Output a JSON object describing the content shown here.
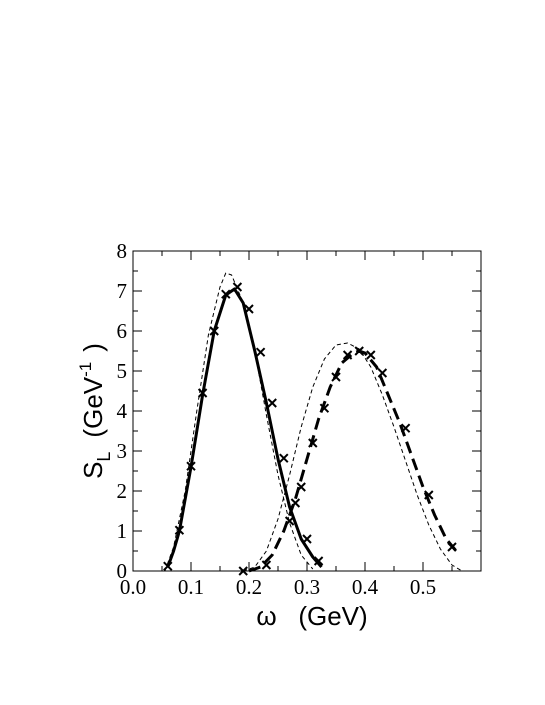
{
  "chart_data": {
    "type": "line",
    "xlabel": "ω   (GeV)",
    "ylabel": {
      "main": "S",
      "sub": "L",
      "unit": "(GeV",
      "sup": "-1",
      "close": ")"
    },
    "xlim": [
      0,
      0.6
    ],
    "ylim": [
      0,
      8
    ],
    "xticks": [
      {
        "value": 0,
        "label": "0.0"
      },
      0.1,
      0.2,
      0.3,
      0.4,
      0.5
    ],
    "yticks": [
      0,
      1,
      2,
      3,
      4,
      5,
      6,
      7,
      8
    ],
    "xminorticks": [
      0.05,
      0.15,
      0.25,
      0.35,
      0.45,
      0.55
    ],
    "yminorticks": [
      0.5,
      1.5,
      2.5,
      3.5,
      4.5,
      5.5,
      6.5,
      7.5
    ],
    "color": "#000000",
    "series": [
      {
        "style": "solid",
        "x": [
          0.06,
          0.07,
          0.08,
          0.1,
          0.12,
          0.14,
          0.16,
          0.175,
          0.19,
          0.21,
          0.23,
          0.25,
          0.27,
          0.29,
          0.31,
          0.325
        ],
        "values": [
          0.1,
          0.5,
          1.0,
          2.6,
          4.4,
          6.0,
          6.9,
          7.05,
          6.7,
          5.5,
          4.2,
          2.8,
          1.6,
          0.8,
          0.35,
          0.1
        ]
      },
      {
        "style": "thin-dashed",
        "x": [
          0.055,
          0.07,
          0.09,
          0.11,
          0.13,
          0.15,
          0.16,
          0.17,
          0.19,
          0.21,
          0.23,
          0.25,
          0.27,
          0.29,
          0.31
        ],
        "values": [
          0.0,
          0.6,
          2.0,
          4.0,
          5.9,
          7.1,
          7.45,
          7.4,
          6.7,
          5.5,
          3.9,
          2.4,
          1.2,
          0.4,
          0.05
        ]
      },
      {
        "style": "crosses",
        "x": [
          0.06,
          0.08,
          0.1,
          0.12,
          0.14,
          0.16,
          0.18,
          0.2,
          0.22,
          0.24,
          0.26,
          0.28,
          0.3,
          0.32
        ],
        "values": [
          0.12,
          1.02,
          2.62,
          4.45,
          6.0,
          6.92,
          7.1,
          6.55,
          5.47,
          4.2,
          2.82,
          1.7,
          0.8,
          0.25
        ]
      },
      {
        "style": "dashed",
        "x": [
          0.2,
          0.22,
          0.24,
          0.26,
          0.28,
          0.3,
          0.32,
          0.34,
          0.36,
          0.38,
          0.39,
          0.4,
          0.42,
          0.44,
          0.46,
          0.48,
          0.5,
          0.52,
          0.54,
          0.56
        ],
        "values": [
          0,
          0.1,
          0.4,
          1.0,
          1.8,
          2.8,
          3.8,
          4.6,
          5.2,
          5.45,
          5.5,
          5.45,
          5.1,
          4.4,
          3.7,
          2.9,
          2.1,
          1.4,
          0.8,
          0.45
        ]
      },
      {
        "style": "thin-dashed",
        "x": [
          0.19,
          0.21,
          0.23,
          0.25,
          0.27,
          0.29,
          0.31,
          0.33,
          0.35,
          0.37,
          0.39,
          0.41,
          0.43,
          0.45,
          0.47,
          0.49,
          0.51,
          0.53,
          0.55,
          0.565
        ],
        "values": [
          0.0,
          0.1,
          0.5,
          1.3,
          2.4,
          3.6,
          4.6,
          5.3,
          5.65,
          5.7,
          5.55,
          5.1,
          4.4,
          3.6,
          2.75,
          1.9,
          1.15,
          0.55,
          0.15,
          0.02
        ]
      },
      {
        "style": "crosses",
        "x": [
          0.19,
          0.23,
          0.27,
          0.29,
          0.31,
          0.33,
          0.35,
          0.37,
          0.39,
          0.41,
          0.43,
          0.47,
          0.51,
          0.55
        ],
        "values": [
          0,
          0.15,
          1.25,
          2.1,
          3.2,
          4.07,
          4.85,
          5.4,
          5.5,
          5.4,
          4.95,
          3.57,
          1.9,
          0.6
        ]
      }
    ]
  }
}
